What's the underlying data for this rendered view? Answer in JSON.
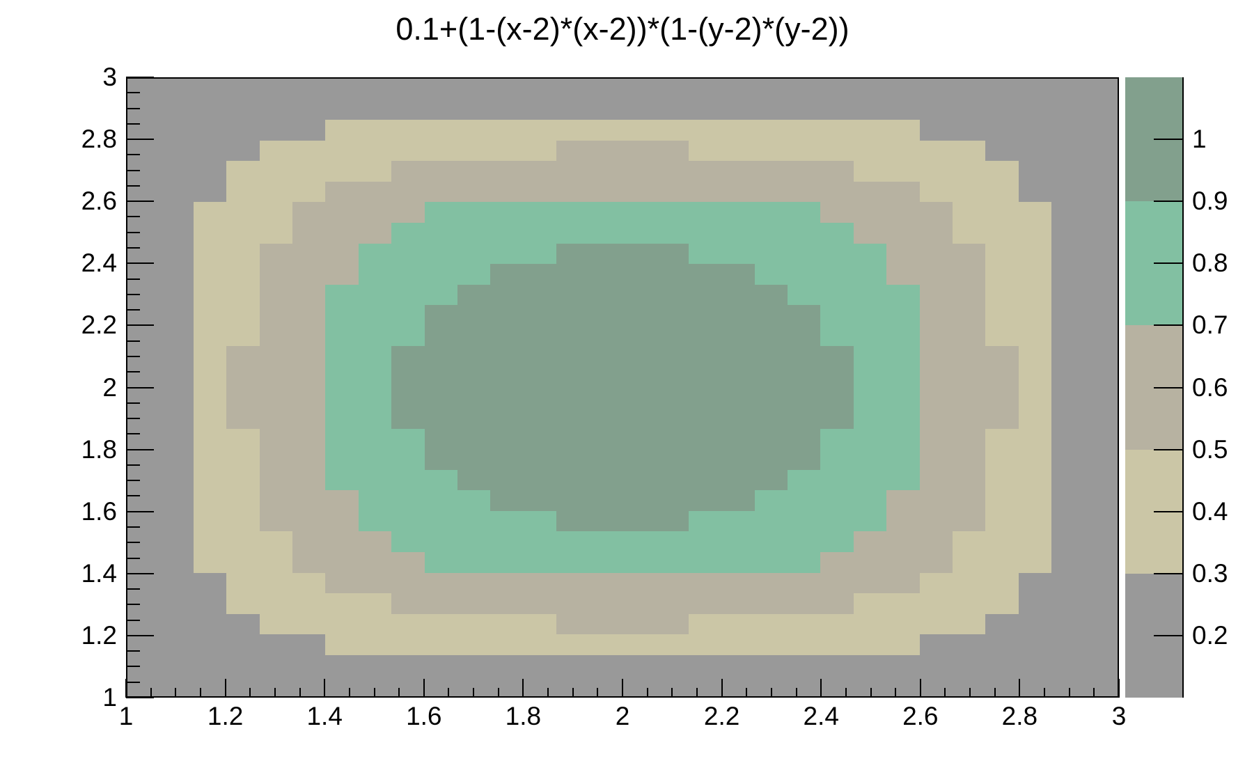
{
  "chart_data": {
    "type": "heatmap",
    "title": "0.1+(1-(x-2)*(x-2))*(1-(y-2)*(y-2))",
    "function": "z(x,y) = 0.1 + (1-(x-2)^2) * (1-(y-2)^2)",
    "x_range": [
      1,
      3
    ],
    "y_range": [
      1,
      3
    ],
    "z_range": [
      0.1,
      1.1
    ],
    "grid_bins": {
      "nx": 30,
      "ny": 30
    },
    "grid_on": false,
    "x_ticks": {
      "major_values": [
        1,
        1.2,
        1.4,
        1.6,
        1.8,
        2,
        2.2,
        2.4,
        2.6,
        2.8,
        3
      ],
      "major_labels": [
        "1",
        "1.2",
        "1.4",
        "1.6",
        "1.8",
        "2",
        "2.2",
        "2.4",
        "2.6",
        "2.8",
        "3"
      ],
      "minor_step": 0.05
    },
    "y_ticks": {
      "major_values": [
        1,
        1.2,
        1.4,
        1.6,
        1.8,
        2,
        2.2,
        2.4,
        2.6,
        2.8,
        3
      ],
      "major_labels": [
        "1",
        "1.2",
        "1.4",
        "1.6",
        "1.8",
        "2",
        "2.2",
        "2.4",
        "2.6",
        "2.8",
        "3"
      ],
      "minor_step": 0.05
    },
    "palette": [
      {
        "band": 0,
        "color": "#999999",
        "z_from": 0.1,
        "z_to": 0.3
      },
      {
        "band": 1,
        "color": "#cbc6a6",
        "z_from": 0.3,
        "z_to": 0.5
      },
      {
        "band": 2,
        "color": "#b7b2a1",
        "z_from": 0.5,
        "z_to": 0.7
      },
      {
        "band": 3,
        "color": "#82c0a2",
        "z_from": 0.7,
        "z_to": 0.9
      },
      {
        "band": 4,
        "color": "#82a08d",
        "z_from": 0.9,
        "z_to": 1.1
      }
    ],
    "colorbar": {
      "position": "right",
      "tick_values": [
        0.2,
        0.3,
        0.4,
        0.5,
        0.6,
        0.7,
        0.8,
        0.9,
        1.0
      ],
      "tick_labels": [
        "0.2",
        "0.3",
        "0.4",
        "0.5",
        "0.6",
        "0.7",
        "0.8",
        "0.9",
        "1"
      ]
    },
    "grid_rows_top_to_bottom": [
      "000000000000000000000000000000",
      "000000000000000000000000000000",
      "000000111111111111111111000000",
      "000011111111122221111111110000",
      "000111112222222222222211111000",
      "000111222222222222222222111000",
      "001112222333333333333222211100",
      "001112223333333333333322211100",
      "001122233333344443333332221100",
      "001122233334444444433332221100",
      "001122333344444444443333221100",
      "001122333444444444444333221100",
      "001122333444444444444333221100",
      "001222334444444444444433222100",
      "001222334444444444444433222100",
      "001222334444444444444433222100",
      "001222334444444444444433222100",
      "001122333444444444444333221100",
      "001122333444444444444333221100",
      "001122333344444444443333221100",
      "001122233334444444433332221100",
      "001122233333344443333332221100",
      "001112223333333333333322211100",
      "001112222333333333333222211100",
      "000111222222222222222222111000",
      "000111112222222222222211111000",
      "000011111111122221111111110000",
      "000000111111111111111111000000",
      "000000000000000000000000000000",
      "000000000000000000000000000000"
    ]
  }
}
